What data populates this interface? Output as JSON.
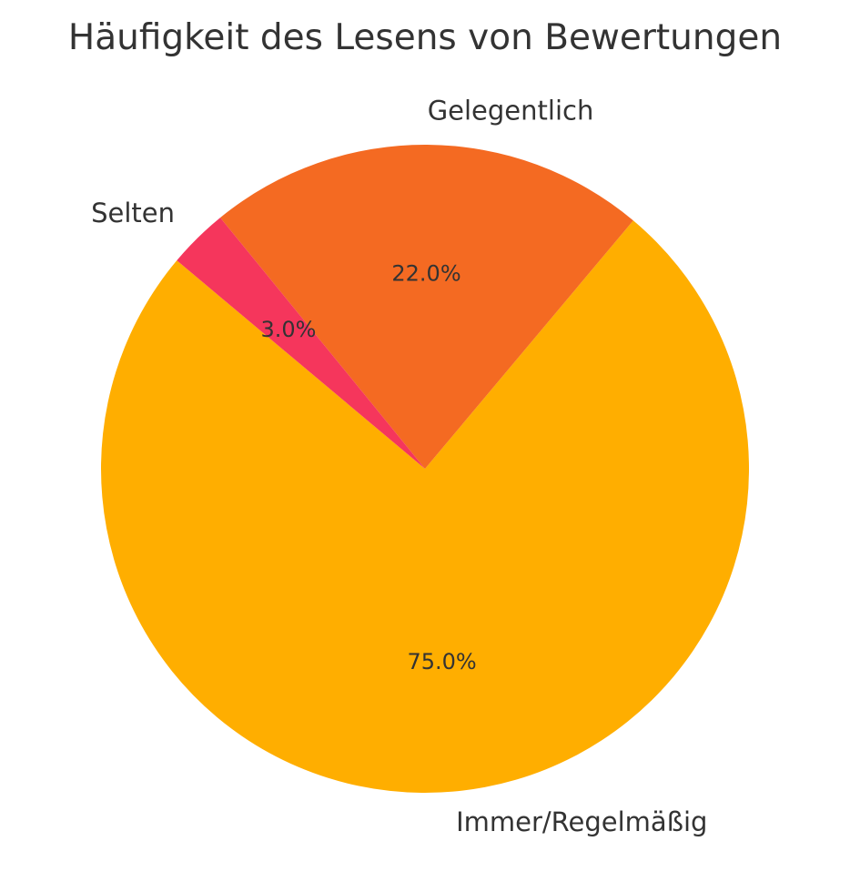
{
  "chart_data": {
    "type": "pie",
    "title": "Häufigkeit des Lesens von Bewertungen",
    "slices": [
      {
        "label": "Immer/Regelmäßig",
        "value": 75.0,
        "pct_label": "75.0%",
        "color": "#FFAE00"
      },
      {
        "label": "Gelegentlich",
        "value": 22.0,
        "pct_label": "22.0%",
        "color": "#F46A22"
      },
      {
        "label": "Selten",
        "value": 3.0,
        "pct_label": "3.0%",
        "color": "#F5365C"
      }
    ],
    "start_angle_deg": 140,
    "direction": "counterclockwise",
    "legend": "none"
  }
}
